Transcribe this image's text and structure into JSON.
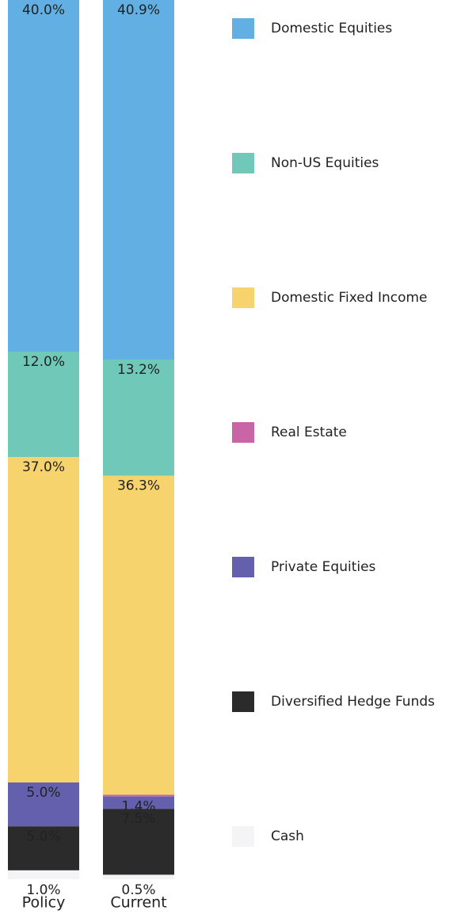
{
  "chart_data": {
    "type": "stacked_bar",
    "categories": [
      "Policy",
      "Current"
    ],
    "ylim": [
      0,
      100
    ],
    "series": [
      {
        "name": "Domestic Equities",
        "color": "#62b0e3",
        "values": [
          40.0,
          40.9
        ],
        "value_labels": [
          "40.0%",
          "40.9%"
        ]
      },
      {
        "name": "Non-US Equities",
        "color": "#70c8b8",
        "values": [
          12.0,
          13.2
        ],
        "value_labels": [
          "12.0%",
          "13.2%"
        ]
      },
      {
        "name": "Domestic Fixed Income",
        "color": "#f6d36d",
        "values": [
          37.0,
          36.3
        ],
        "value_labels": [
          "37.0%",
          "36.3%"
        ]
      },
      {
        "name": "Real Estate",
        "color": "#c964a6",
        "values": [
          0.0,
          0.2
        ],
        "value_labels": [
          "0.0%",
          "0.2%"
        ]
      },
      {
        "name": "Private Equities",
        "color": "#6460ad",
        "values": [
          5.0,
          1.4
        ],
        "value_labels": [
          "5.0%",
          "1.4%"
        ]
      },
      {
        "name": "Diversified Hedge Funds",
        "color": "#2b2b2b",
        "values": [
          5.0,
          7.5
        ],
        "value_labels": [
          "5.0%",
          "7.5%"
        ]
      },
      {
        "name": "Cash",
        "color": "#f4f4f6",
        "values": [
          1.0,
          0.5
        ],
        "value_labels": [
          "1.0%",
          "0.5%"
        ]
      }
    ]
  }
}
